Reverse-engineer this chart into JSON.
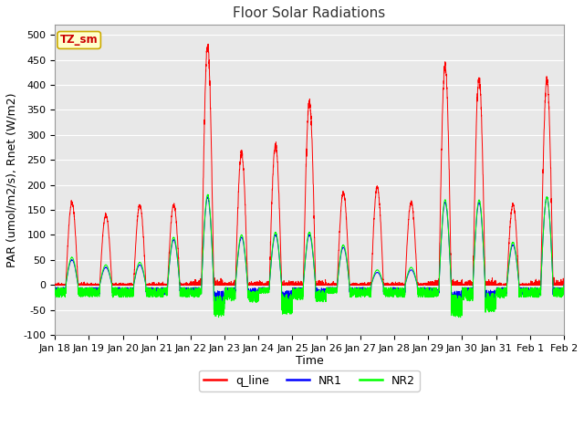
{
  "title": "Floor Solar Radiations",
  "xlabel": "Time",
  "ylabel": "PAR (umol/m2/s), Rnet (W/m2)",
  "ylim": [
    -100,
    520
  ],
  "yticks": [
    -100,
    -50,
    0,
    50,
    100,
    150,
    200,
    250,
    300,
    350,
    400,
    450,
    500
  ],
  "fig_bg": "#ffffff",
  "plot_bg": "#e8e8e8",
  "legend_entries": [
    "q_line",
    "NR1",
    "NR2"
  ],
  "legend_colors": [
    "#ff0000",
    "#0000ff",
    "#00ff00"
  ],
  "tz_label": "TZ_sm",
  "tz_bg": "#ffffcc",
  "tz_border": "#ccaa00",
  "n_days": 15,
  "day_peaks_q": [
    165,
    140,
    160,
    160,
    480,
    265,
    280,
    365,
    185,
    195,
    165,
    440,
    415,
    160,
    410
  ],
  "day_peaks_nr1": [
    50,
    35,
    40,
    90,
    175,
    95,
    100,
    100,
    75,
    25,
    30,
    165,
    165,
    80,
    175
  ],
  "day_peaks_nr2": [
    55,
    40,
    45,
    95,
    180,
    100,
    105,
    105,
    80,
    30,
    35,
    170,
    170,
    85,
    175
  ],
  "xtick_labels": [
    "Jan 18",
    "Jan 19",
    "Jan 20",
    "Jan 21",
    "Jan 22",
    "Jan 23",
    "Jan 24",
    "Jan 25",
    "Jan 26",
    "Jan 27",
    "Jan 28",
    "Jan 29",
    "Jan 30",
    "Jan 31",
    "Feb 1",
    "Feb 2"
  ],
  "title_fontsize": 11,
  "axis_fontsize": 8,
  "label_fontsize": 9
}
